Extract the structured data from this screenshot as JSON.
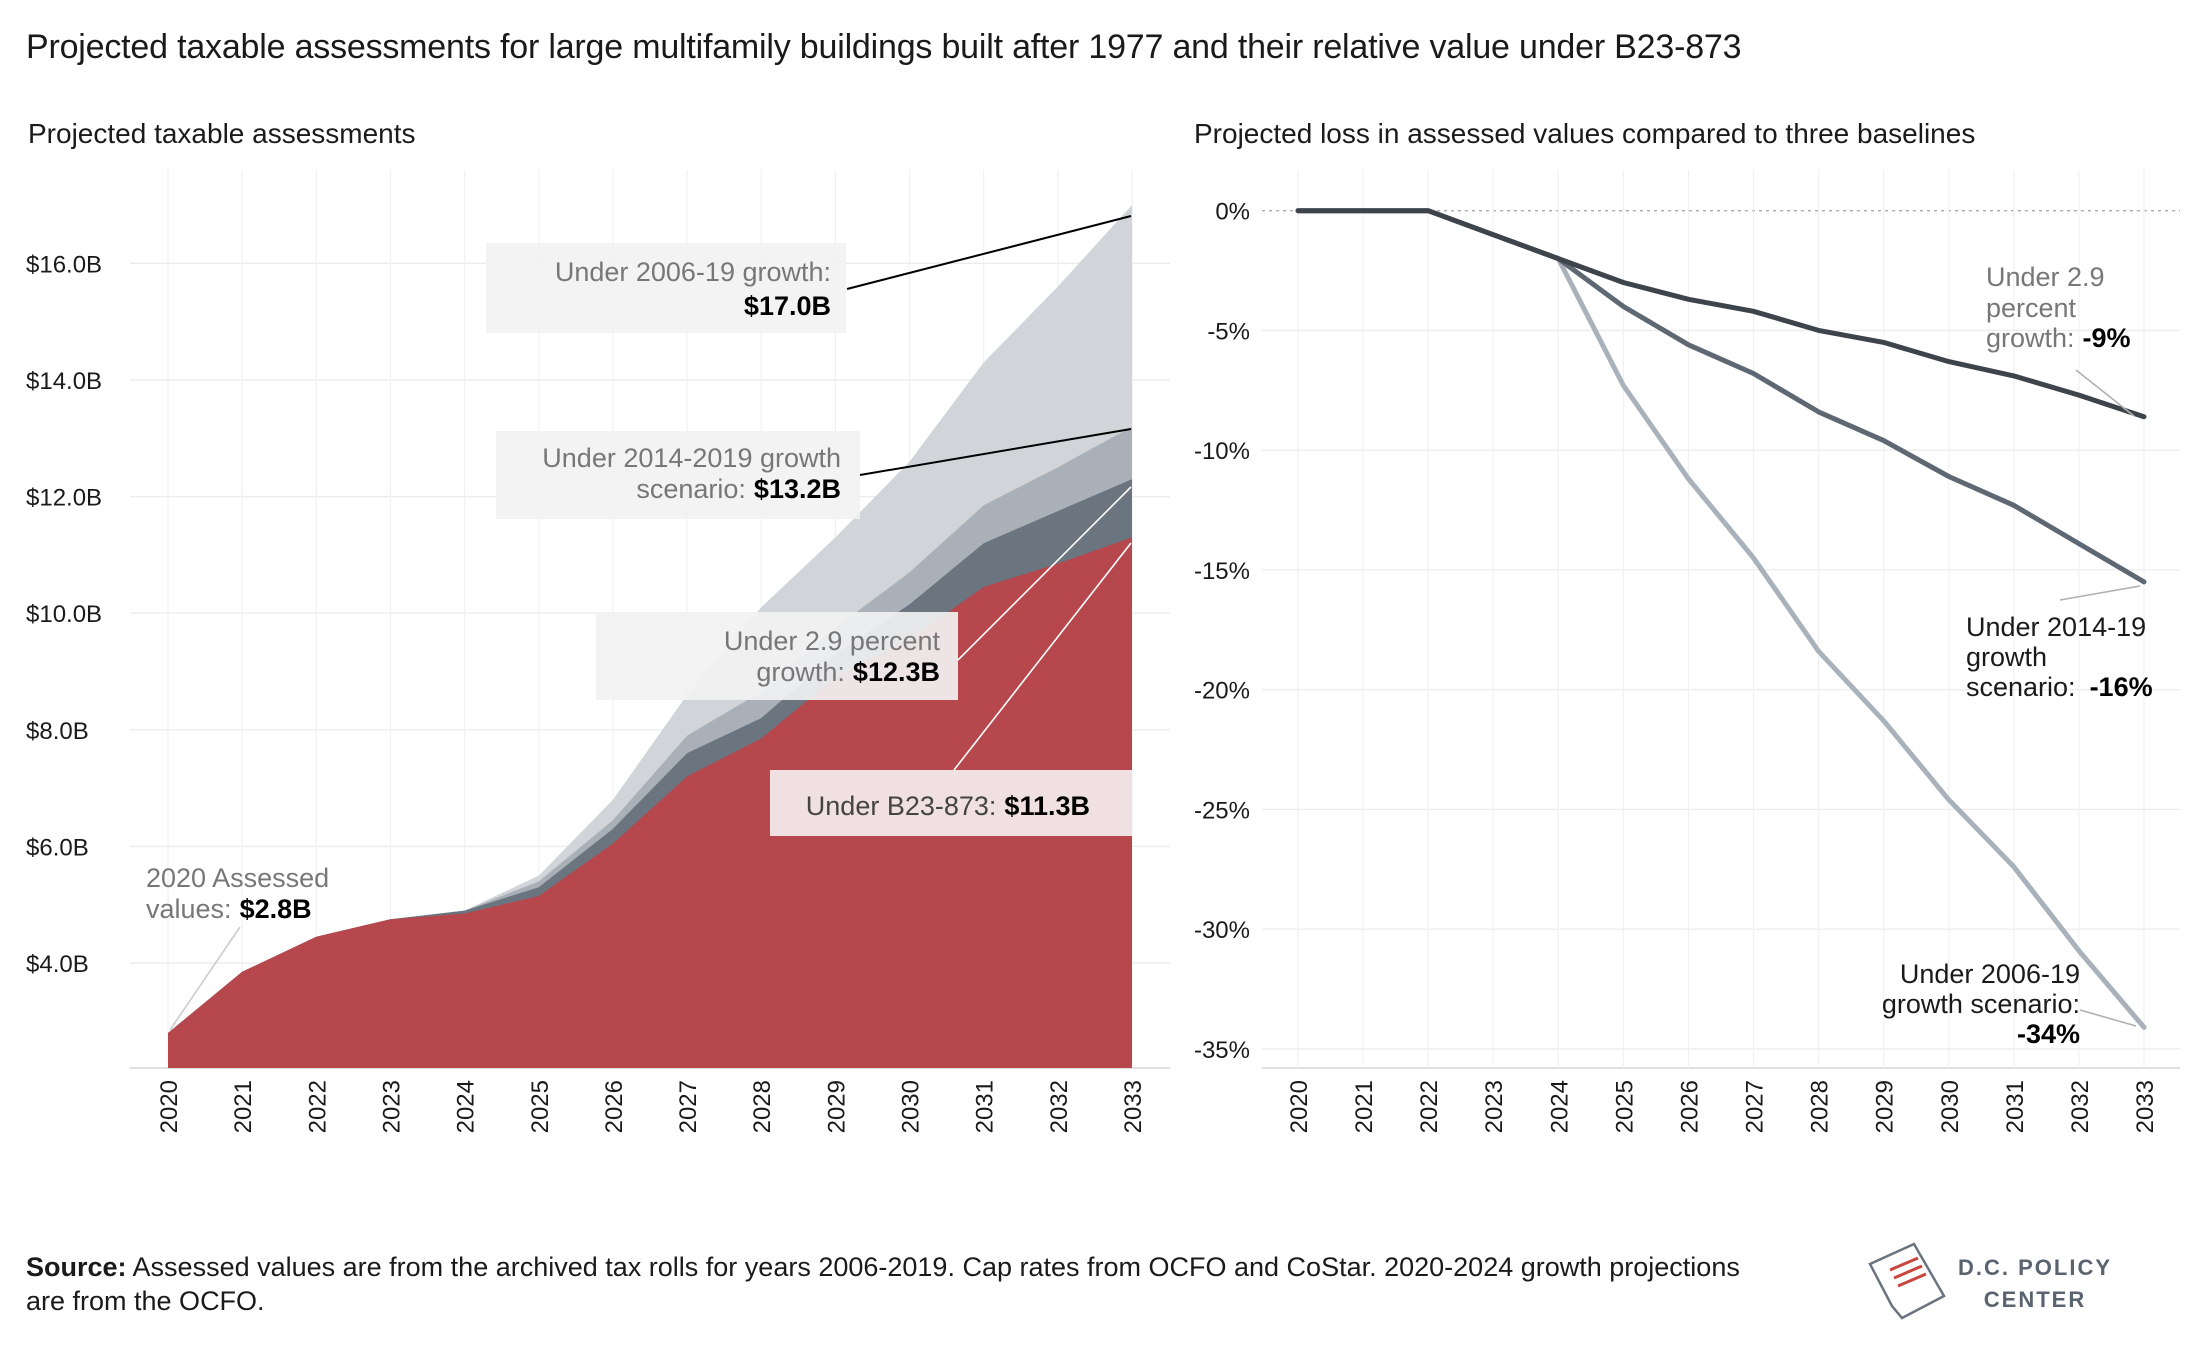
{
  "title": "Projected taxable assessments for large multifamily buildings built after 1977 and their relative value under B23-873",
  "footer": {
    "source_label": "Source:",
    "source_text": " Assessed values are from the archived tax rolls for years 2006-2019. Cap rates from OCFO and CoStar. 2020-2024 growth projections are from the OCFO."
  },
  "logo": {
    "line1": "D.C. POLICY",
    "line2": "CENTER"
  },
  "colors": {
    "b23": "#b5474d",
    "g29": "#6b7580",
    "g1419": "#a9b0b8",
    "g0619": "#d1d5d9",
    "dark_line": "#3e444c",
    "mid_line": "#5e6873",
    "light_line": "#a9b2bb"
  },
  "chart_data": [
    {
      "type": "area",
      "title": "Projected taxable assessments",
      "x": [
        "2020",
        "2021",
        "2022",
        "2023",
        "2024",
        "2025",
        "2026",
        "2027",
        "2028",
        "2029",
        "2030",
        "2031",
        "2032",
        "2033"
      ],
      "yticks": [
        "$4.0B",
        "$6.0B",
        "$8.0B",
        "$10.0B",
        "$12.0B",
        "$14.0B",
        "$16.0B"
      ],
      "ytick_values": [
        4,
        6,
        8,
        10,
        12,
        14,
        16
      ],
      "ylim": [
        2.2,
        17.6
      ],
      "grid": true,
      "series": [
        {
          "name": "Under 2006-19 growth",
          "values": [
            2.8,
            3.85,
            4.45,
            4.75,
            4.9,
            5.5,
            6.8,
            8.6,
            10.1,
            11.3,
            12.6,
            14.3,
            15.6,
            17.0
          ]
        },
        {
          "name": "Under 2014-2019 growth scenario",
          "values": [
            2.8,
            3.85,
            4.45,
            4.75,
            4.9,
            5.4,
            6.45,
            7.9,
            8.65,
            9.75,
            10.7,
            11.85,
            12.5,
            13.2
          ]
        },
        {
          "name": "Under 2.9 percent growth",
          "values": [
            2.8,
            3.85,
            4.45,
            4.75,
            4.9,
            5.3,
            6.3,
            7.6,
            8.2,
            9.3,
            10.15,
            11.2,
            11.75,
            12.3
          ]
        },
        {
          "name": "Under B23-873",
          "values": [
            2.8,
            3.85,
            4.45,
            4.75,
            4.85,
            5.15,
            6.05,
            7.2,
            7.85,
            8.9,
            9.55,
            10.45,
            10.85,
            11.3
          ]
        }
      ],
      "annotations": [
        {
          "label": "Under 2006-19 growth:",
          "value": "$17.0B"
        },
        {
          "label_line1": "Under 2014-2019 growth",
          "label_line2": "scenario:",
          "value": "$13.2B"
        },
        {
          "label_line1": "Under 2.9 percent",
          "label_line2": "growth:",
          "value": "$12.3B"
        },
        {
          "label": "Under B23-873:",
          "value": "$11.3B"
        },
        {
          "label_line1": "2020 Assessed",
          "label_line2": "values:",
          "value": "$2.8B"
        }
      ]
    },
    {
      "type": "line",
      "title": "Projected loss in assessed values compared to three baselines",
      "x": [
        "2020",
        "2021",
        "2022",
        "2023",
        "2024",
        "2025",
        "2026",
        "2027",
        "2028",
        "2029",
        "2030",
        "2031",
        "2032",
        "2033"
      ],
      "yticks": [
        "0%",
        "-5%",
        "-10%",
        "-15%",
        "-20%",
        "-25%",
        "-30%",
        "-35%"
      ],
      "ytick_values": [
        0,
        -5,
        -10,
        -15,
        -20,
        -25,
        -30,
        -35
      ],
      "ylim": [
        -35.8,
        1.7
      ],
      "series": [
        {
          "name": "Under 2.9 percent growth",
          "values": [
            0,
            0,
            0,
            -1,
            -2,
            -3,
            -3.7,
            -4.2,
            -5,
            -5.5,
            -6.3,
            -6.9,
            -7.7,
            -8.6
          ]
        },
        {
          "name": "Under 2014-19 growth scenario",
          "values": [
            0,
            0,
            0,
            -1,
            -2,
            -4,
            -5.6,
            -6.8,
            -8.4,
            -9.6,
            -11.1,
            -12.3,
            -13.9,
            -15.5
          ]
        },
        {
          "name": "Under 2006-19 growth scenario",
          "values": [
            0,
            0,
            0,
            -1,
            -2,
            -7.3,
            -11.2,
            -14.5,
            -18.4,
            -21.3,
            -24.6,
            -27.4,
            -30.9,
            -34.1
          ]
        }
      ],
      "annotations": [
        {
          "label_line1": "Under 2.9",
          "label_line2": "percent",
          "label_line3": "growth:",
          "value": "-9%"
        },
        {
          "label_line1": "Under 2014-19",
          "label_line2": "growth",
          "label_line3": "scenario:",
          "value": "-16%"
        },
        {
          "label_line1": "Under 2006-19",
          "label_line2": "growth scenario:",
          "value": "-34%"
        }
      ]
    }
  ]
}
